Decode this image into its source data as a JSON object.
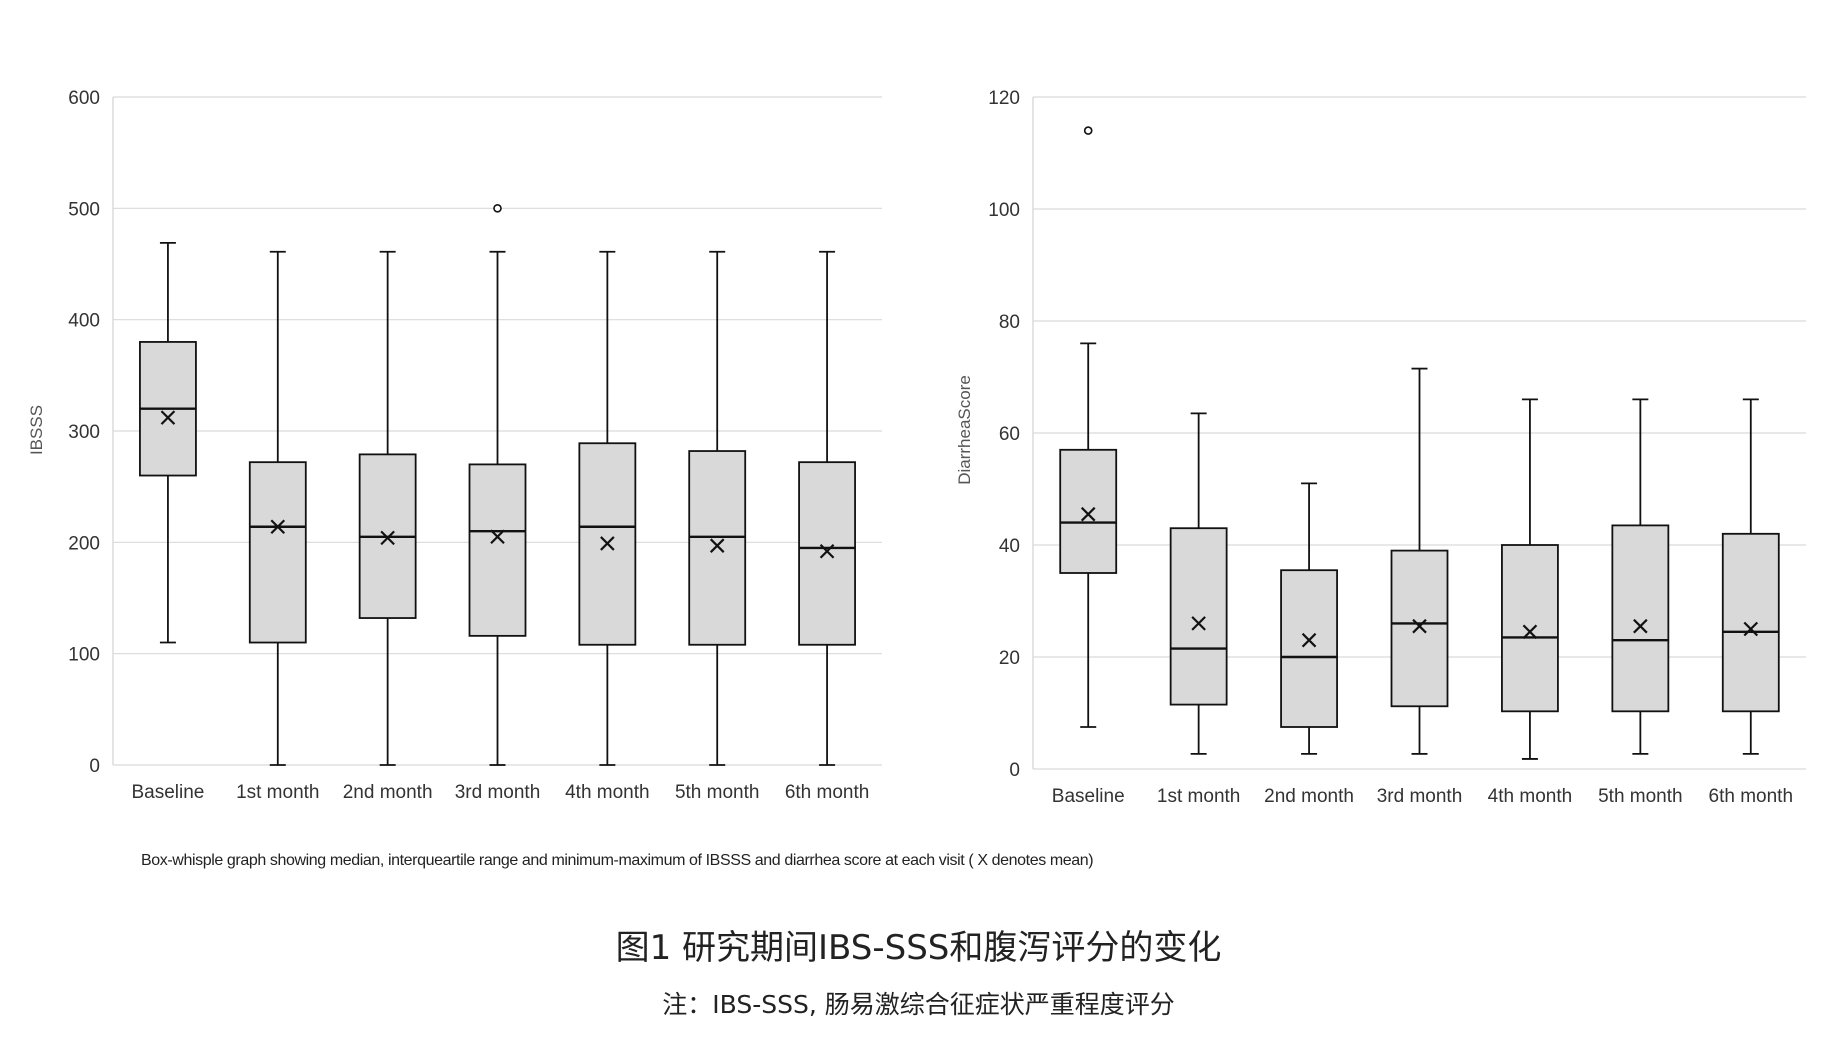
{
  "chart_data": [
    {
      "type": "box",
      "title": "",
      "xlabel": "",
      "ylabel": "IBSSS",
      "ylim": [
        0,
        600
      ],
      "yticks": [
        0,
        100,
        200,
        300,
        400,
        500,
        600
      ],
      "grid": true,
      "categories": [
        "Baseline",
        "1st month",
        "2nd month",
        "3rd month",
        "4th month",
        "5th month",
        "6th month"
      ],
      "boxes": [
        {
          "min": 110,
          "q1": 260,
          "median": 320,
          "q3": 380,
          "max": 469,
          "mean": 312,
          "outliers": []
        },
        {
          "min": 0,
          "q1": 110,
          "median": 214,
          "q3": 272,
          "max": 461,
          "mean": 214,
          "outliers": []
        },
        {
          "min": 0,
          "q1": 132,
          "median": 205,
          "q3": 279,
          "max": 461,
          "mean": 204,
          "outliers": []
        },
        {
          "min": 0,
          "q1": 116,
          "median": 210,
          "q3": 270,
          "max": 461,
          "mean": 205,
          "outliers": [
            500
          ]
        },
        {
          "min": 0,
          "q1": 108,
          "median": 214,
          "q3": 289,
          "max": 461,
          "mean": 199,
          "outliers": []
        },
        {
          "min": 0,
          "q1": 108,
          "median": 205,
          "q3": 282,
          "max": 461,
          "mean": 197,
          "outliers": []
        },
        {
          "min": 0,
          "q1": 108,
          "median": 195,
          "q3": 272,
          "max": 461,
          "mean": 192,
          "outliers": []
        }
      ]
    },
    {
      "type": "box",
      "title": "",
      "xlabel": "",
      "ylabel": "DiarrheaScore",
      "ylim": [
        0,
        120
      ],
      "yticks": [
        0,
        20,
        40,
        60,
        80,
        100,
        120
      ],
      "grid": true,
      "categories": [
        "Baseline",
        "1st month",
        "2nd month",
        "3rd month",
        "4th month",
        "5th month",
        "6th month"
      ],
      "boxes": [
        {
          "min": 7.5,
          "q1": 35,
          "median": 44,
          "q3": 57,
          "max": 76,
          "mean": 45.5,
          "outliers": [
            114
          ]
        },
        {
          "min": 2.7,
          "q1": 11.5,
          "median": 21.5,
          "q3": 43,
          "max": 63.5,
          "mean": 26,
          "outliers": []
        },
        {
          "min": 2.7,
          "q1": 7.5,
          "median": 20,
          "q3": 35.5,
          "max": 51,
          "mean": 23,
          "outliers": []
        },
        {
          "min": 2.7,
          "q1": 11.2,
          "median": 26,
          "q3": 39,
          "max": 71.5,
          "mean": 25.5,
          "outliers": []
        },
        {
          "min": 1.8,
          "q1": 10.3,
          "median": 23.5,
          "q3": 40,
          "max": 66,
          "mean": 24.5,
          "outliers": []
        },
        {
          "min": 2.7,
          "q1": 10.3,
          "median": 23,
          "q3": 43.5,
          "max": 66,
          "mean": 25.5,
          "outliers": []
        },
        {
          "min": 2.7,
          "q1": 10.3,
          "median": 24.5,
          "q3": 42,
          "max": 66,
          "mean": 25,
          "outliers": []
        }
      ]
    }
  ],
  "caption": {
    "note": "Box-whisple graph showing median, interqueartile range and minimum-maximum of IBSSS and diarrhea score at each visit ( X denotes mean)",
    "title": "图1 研究期间IBS-SSS和腹泻评分的变化",
    "subtitle": "注：IBS-SSS, 肠易激综合征症状严重程度评分"
  },
  "colors": {
    "box_fill": "#d9d9d9",
    "stroke": "#111111",
    "grid": "#d9d9d9"
  }
}
